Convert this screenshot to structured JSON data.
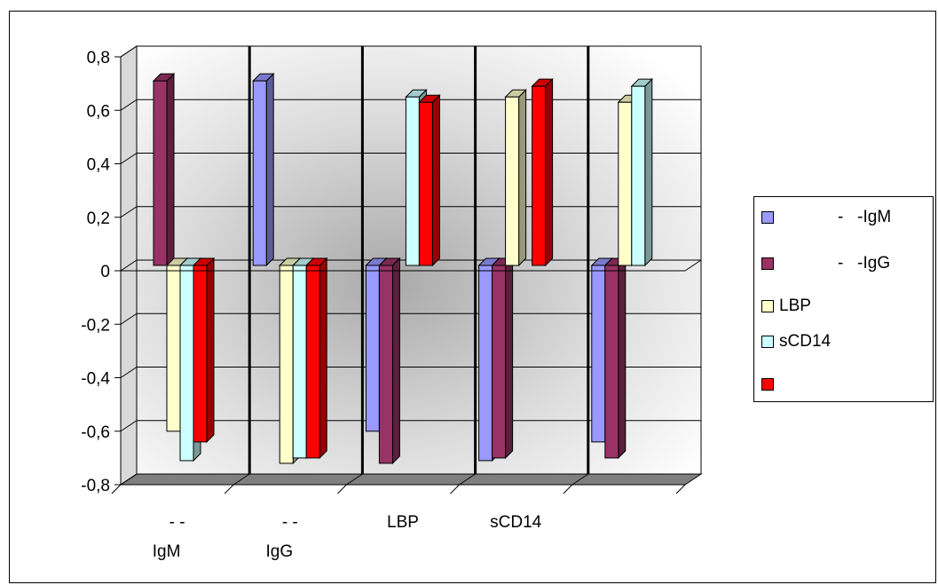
{
  "chart_data": {
    "type": "bar",
    "categories": [
      {
        "line1": "-  -",
        "line2": "IgM"
      },
      {
        "line1": "-  -",
        "line2": "IgG"
      },
      {
        "line1": "LBP",
        "line2": ""
      },
      {
        "line1": "sCD14",
        "line2": ""
      },
      {
        "line1": "",
        "line2": ""
      }
    ],
    "series": [
      {
        "name": "-   -IgM",
        "color": "#9999FF",
        "values": [
          null,
          0.69,
          -0.62,
          -0.73,
          -0.66
        ]
      },
      {
        "name": "-   -IgG",
        "color": "#993366",
        "values": [
          0.69,
          null,
          -0.74,
          -0.72,
          -0.72
        ]
      },
      {
        "name": "LBP",
        "color": "#FFFFCC",
        "values": [
          -0.62,
          -0.74,
          null,
          0.63,
          0.61
        ]
      },
      {
        "name": "sCD14",
        "color": "#CCFFFF",
        "values": [
          -0.73,
          -0.72,
          0.63,
          null,
          0.67
        ]
      },
      {
        "name": "",
        "color": "#FF0000",
        "values": [
          -0.66,
          -0.72,
          0.61,
          0.67,
          null
        ]
      }
    ],
    "yticks": [
      "0,8",
      "0,6",
      "0,4",
      "0,2",
      "0",
      "-0,2",
      "-0,4",
      "-0,6",
      "-0,8"
    ],
    "ylim": [
      -0.8,
      0.8
    ],
    "grid": true,
    "legend_position": "right"
  }
}
